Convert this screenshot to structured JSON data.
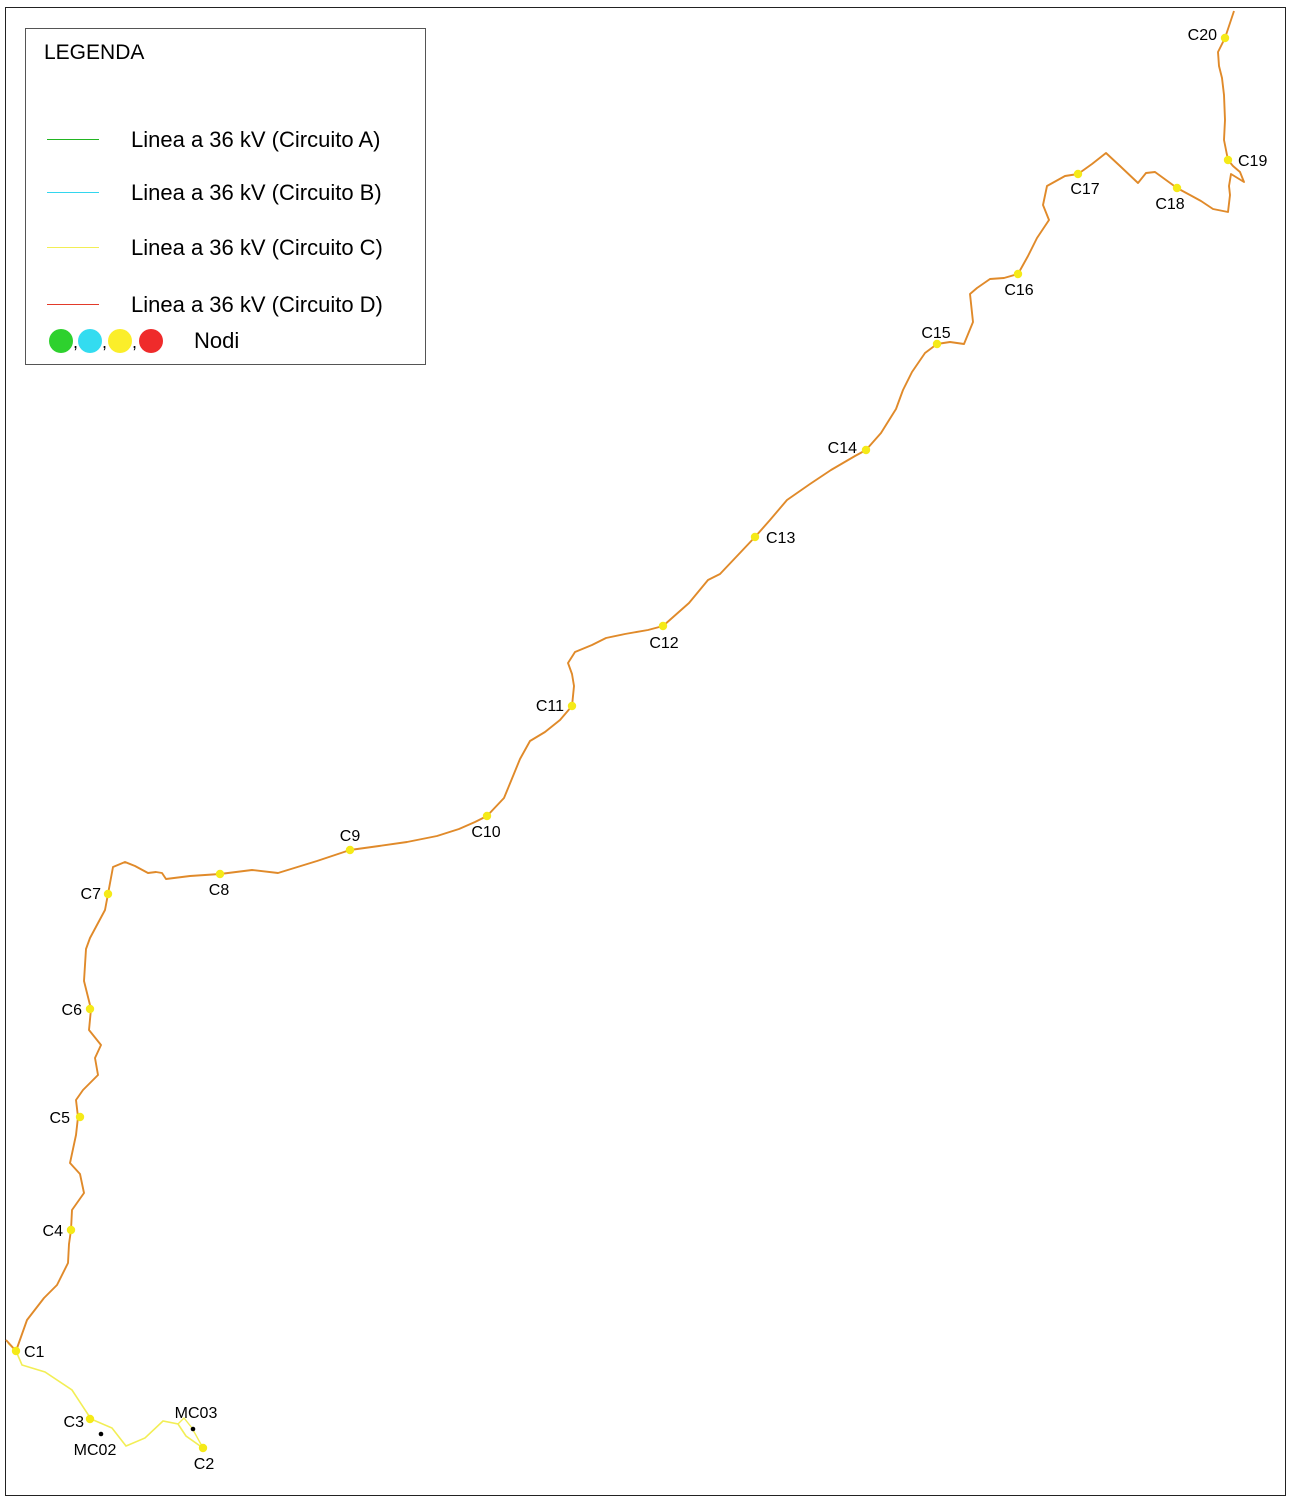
{
  "legend": {
    "title": "LEGENDA",
    "items": [
      {
        "label": "Linea a 36 kV (Circuito A)",
        "color": "#22b522"
      },
      {
        "label": "Linea a 36 kV (Circuito B)",
        "color": "#33d6ee"
      },
      {
        "label": "Linea a 36 kV (Circuito C)",
        "color": "#f2ee55"
      },
      {
        "label": "Linea a 36 kV (Circuito D)",
        "color": "#e23a2a"
      }
    ],
    "nodes_label": "Nodi",
    "node_colors": [
      "#2ed12e",
      "#33dcf0",
      "#fbee2a",
      "#ef2b2b"
    ]
  },
  "map": {
    "route_color": "#e08a2a",
    "node_color": "#f5ea18",
    "nodes": [
      "C1",
      "C2",
      "C3",
      "C4",
      "C5",
      "C6",
      "C7",
      "C8",
      "C9",
      "C10",
      "C11",
      "C12",
      "C13",
      "C14",
      "C15",
      "C16",
      "C17",
      "C18",
      "C19",
      "C20"
    ],
    "markers": [
      "MC02",
      "MC03"
    ]
  }
}
